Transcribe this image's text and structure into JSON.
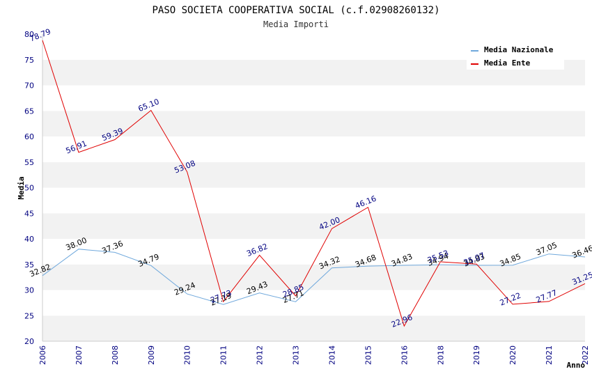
{
  "chart_data": {
    "type": "line",
    "title": "PASO SOCIETA COOPERATIVA SOCIAL (c.f.02908260132)",
    "subtitle": "Media Importi",
    "xlabel": "Anno",
    "ylabel": "Media",
    "ylim": [
      20,
      80
    ],
    "yticks": [
      "20",
      "25",
      "30",
      "35",
      "40",
      "45",
      "50",
      "55",
      "60",
      "65",
      "70",
      "75",
      "80"
    ],
    "categories": [
      "2006",
      "2007",
      "2008",
      "2009",
      "2010",
      "2011",
      "2012",
      "2013",
      "2014",
      "2015",
      "2016",
      "2018",
      "2019",
      "2020",
      "2021",
      "2022"
    ],
    "legend_position": "top-right",
    "series": [
      {
        "name": "Media Nazionale",
        "color": "#6fa8dc",
        "label_color": "#000000",
        "values": [
          32.82,
          38.0,
          37.36,
          34.79,
          29.24,
          27.19,
          29.43,
          27.71,
          34.32,
          34.68,
          34.83,
          34.94,
          34.83,
          34.85,
          37.05,
          36.46
        ],
        "labels": [
          "32.82",
          "38.00",
          "37.36",
          "34.79",
          "29.24",
          "27.19",
          "29.43",
          "27.71",
          "34.32",
          "34.68",
          "34.83",
          "34.94",
          "34.83",
          "34.85",
          "37.05",
          "36.46"
        ]
      },
      {
        "name": "Media Ente",
        "color": "#e00000",
        "label_color": "#000080",
        "values": [
          78.79,
          56.91,
          59.39,
          65.1,
          53.08,
          27.73,
          36.82,
          28.85,
          42.0,
          46.16,
          22.96,
          35.53,
          35.07,
          27.22,
          27.77,
          31.25
        ],
        "labels": [
          "78.79",
          "56.91",
          "59.39",
          "65.10",
          "53.08",
          "27.73",
          "36.82",
          "28.85",
          "42.00",
          "46.16",
          "22.96",
          "35.53",
          "35.07",
          "27.22",
          "27.77",
          "31.25"
        ]
      }
    ]
  }
}
